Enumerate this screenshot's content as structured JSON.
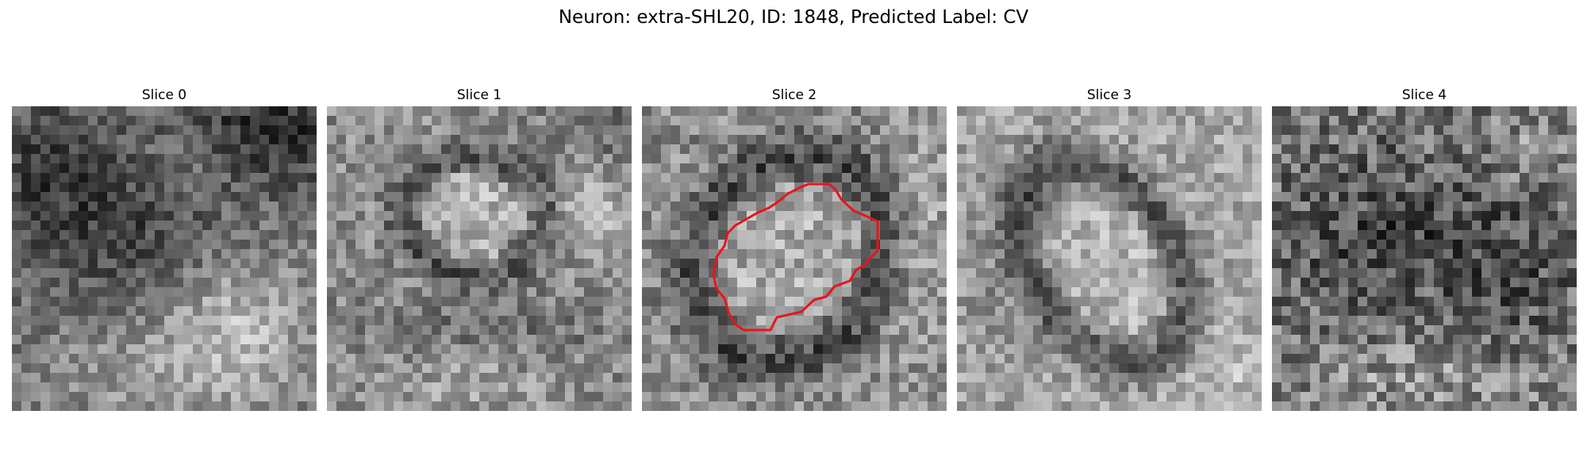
{
  "figure": {
    "title": "Neuron: extra-SHL20, ID: 1848, Predicted Label: CV"
  },
  "slices": [
    {
      "title": "Slice 0",
      "pattern": "dark-top-bright-lower-right",
      "has_contour": false
    },
    {
      "title": "Slice 1",
      "pattern": "ring-cell-upper-center",
      "has_contour": false
    },
    {
      "title": "Slice 2",
      "pattern": "ring-cell-center",
      "has_contour": true
    },
    {
      "title": "Slice 3",
      "pattern": "elongated-dark-ring-cell",
      "has_contour": false
    },
    {
      "title": "Slice 4",
      "pattern": "noisy-dark-center",
      "has_contour": false
    }
  ],
  "colors": {
    "background": "#ffffff",
    "contour": "#e8141c",
    "text": "#000000"
  }
}
